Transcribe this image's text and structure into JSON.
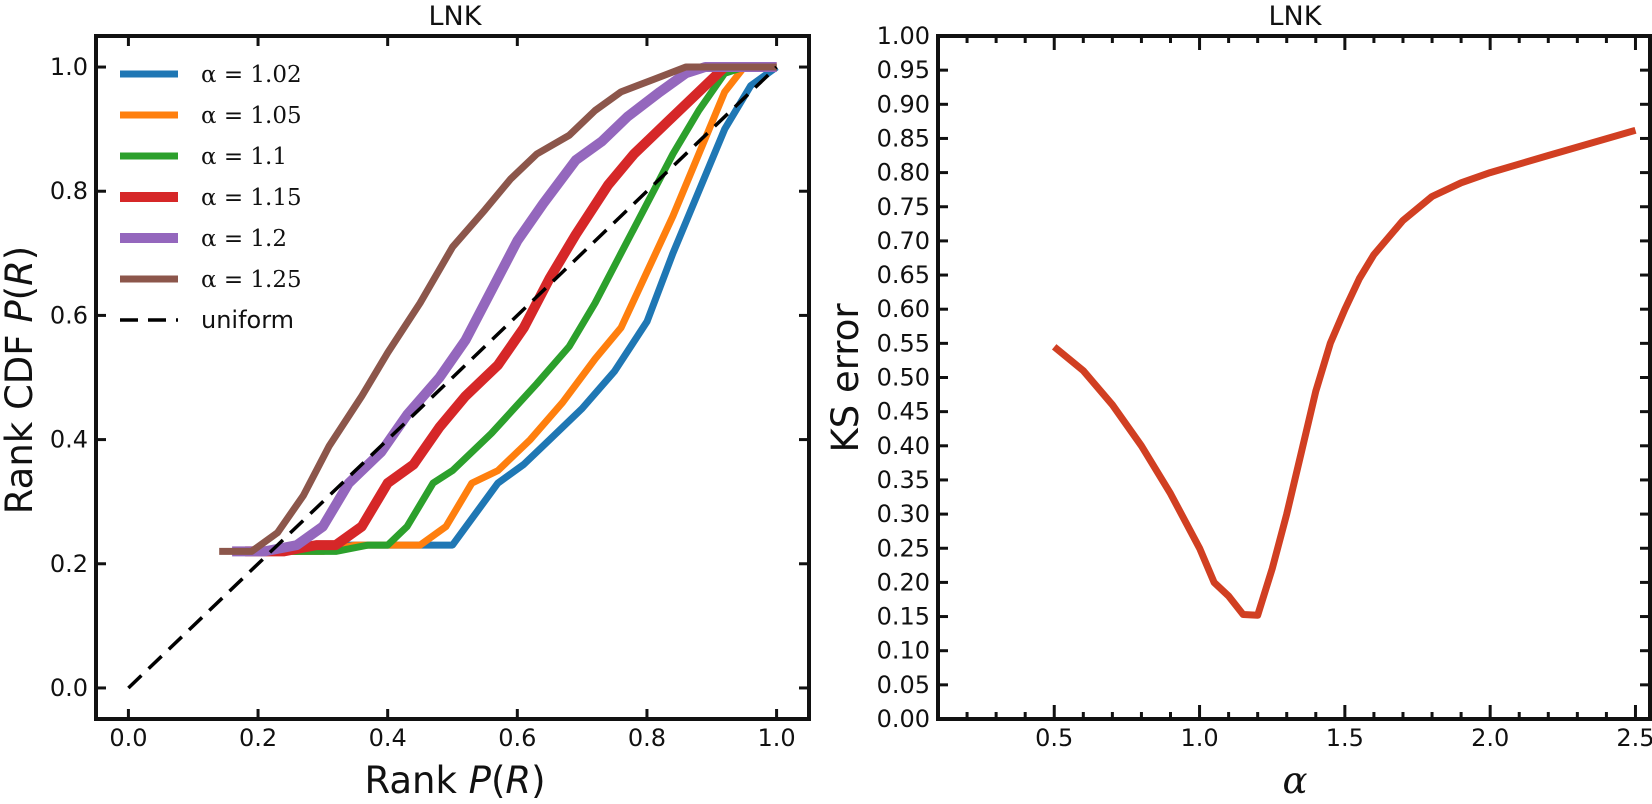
{
  "chart_data": [
    {
      "type": "line",
      "title": "LNK",
      "xlabel": "Rank P(R)",
      "ylabel": "Rank CDF P(R)",
      "xlim": [
        -0.05,
        1.05
      ],
      "ylim": [
        -0.05,
        1.05
      ],
      "xticks": [
        "0.0",
        "0.2",
        "0.4",
        "0.6",
        "0.8",
        "1.0"
      ],
      "yticks": [
        "0.0",
        "0.2",
        "0.4",
        "0.6",
        "0.8",
        "1.0"
      ],
      "legend_position": "top-left",
      "series": [
        {
          "name": "α = 1.02",
          "color": "#1f77b4",
          "x": [
            0.21,
            0.26,
            0.32,
            0.38,
            0.44,
            0.5,
            0.57,
            0.61,
            0.65,
            0.7,
            0.75,
            0.8,
            0.84,
            0.88,
            0.92,
            0.96,
            1.0
          ],
          "y": [
            0.22,
            0.22,
            0.23,
            0.23,
            0.23,
            0.23,
            0.33,
            0.36,
            0.4,
            0.45,
            0.51,
            0.59,
            0.7,
            0.8,
            0.9,
            0.97,
            1.0
          ]
        },
        {
          "name": "α = 1.05",
          "color": "#ff7f0e",
          "x": [
            0.25,
            0.3,
            0.35,
            0.4,
            0.45,
            0.49,
            0.53,
            0.57,
            0.62,
            0.67,
            0.72,
            0.76,
            0.8,
            0.84,
            0.88,
            0.92,
            0.95,
            1.0
          ],
          "y": [
            0.22,
            0.22,
            0.23,
            0.23,
            0.23,
            0.26,
            0.33,
            0.35,
            0.4,
            0.46,
            0.53,
            0.58,
            0.67,
            0.76,
            0.86,
            0.96,
            1.0,
            1.0
          ]
        },
        {
          "name": "α = 1.1",
          "color": "#2ca02c",
          "x": [
            0.22,
            0.27,
            0.32,
            0.37,
            0.4,
            0.43,
            0.47,
            0.5,
            0.56,
            0.63,
            0.68,
            0.72,
            0.76,
            0.8,
            0.84,
            0.88,
            0.92,
            0.95,
            1.0
          ],
          "y": [
            0.22,
            0.22,
            0.22,
            0.23,
            0.23,
            0.26,
            0.33,
            0.35,
            0.41,
            0.49,
            0.55,
            0.62,
            0.7,
            0.78,
            0.86,
            0.93,
            0.99,
            1.0,
            1.0
          ]
        },
        {
          "name": "α = 1.15",
          "color": "#d62728",
          "x": [
            0.18,
            0.24,
            0.29,
            0.32,
            0.36,
            0.4,
            0.44,
            0.48,
            0.52,
            0.57,
            0.61,
            0.65,
            0.69,
            0.74,
            0.78,
            0.83,
            0.88,
            0.92,
            0.96,
            1.0
          ],
          "y": [
            0.22,
            0.22,
            0.23,
            0.23,
            0.26,
            0.33,
            0.36,
            0.42,
            0.47,
            0.52,
            0.58,
            0.66,
            0.73,
            0.81,
            0.86,
            0.91,
            0.96,
            1.0,
            1.0,
            1.0
          ]
        },
        {
          "name": "α = 1.2",
          "color": "#9467bd",
          "x": [
            0.16,
            0.21,
            0.26,
            0.3,
            0.34,
            0.39,
            0.43,
            0.48,
            0.52,
            0.56,
            0.6,
            0.64,
            0.69,
            0.73,
            0.77,
            0.82,
            0.86,
            0.89,
            0.94,
            1.0
          ],
          "y": [
            0.22,
            0.22,
            0.23,
            0.26,
            0.33,
            0.38,
            0.44,
            0.5,
            0.56,
            0.64,
            0.72,
            0.78,
            0.85,
            0.88,
            0.92,
            0.96,
            0.99,
            1.0,
            1.0,
            1.0
          ]
        },
        {
          "name": "α = 1.25",
          "color": "#8c564b",
          "x": [
            0.14,
            0.19,
            0.23,
            0.27,
            0.31,
            0.36,
            0.4,
            0.45,
            0.5,
            0.55,
            0.59,
            0.63,
            0.68,
            0.72,
            0.76,
            0.81,
            0.86,
            0.9,
            0.95,
            1.0
          ],
          "y": [
            0.22,
            0.22,
            0.25,
            0.31,
            0.39,
            0.47,
            0.54,
            0.62,
            0.71,
            0.77,
            0.82,
            0.86,
            0.89,
            0.93,
            0.96,
            0.98,
            1.0,
            1.0,
            1.0,
            1.0
          ]
        },
        {
          "name": "uniform",
          "color": "#000000",
          "dash": true,
          "x": [
            0.0,
            1.0
          ],
          "y": [
            0.0,
            1.0
          ]
        }
      ]
    },
    {
      "type": "line",
      "title": "LNK",
      "xlabel": "α",
      "ylabel": "KS error",
      "xlim": [
        0.1,
        2.55
      ],
      "ylim": [
        0.0,
        1.0
      ],
      "xticks": [
        "0.5",
        "1.0",
        "1.5",
        "2.0",
        "2.5"
      ],
      "yticks": [
        "0.00",
        "0.05",
        "0.10",
        "0.15",
        "0.20",
        "0.25",
        "0.30",
        "0.35",
        "0.40",
        "0.45",
        "0.50",
        "0.55",
        "0.60",
        "0.65",
        "0.70",
        "0.75",
        "0.80",
        "0.85",
        "0.90",
        "0.95",
        "1.00"
      ],
      "series": [
        {
          "color": "#d13f22",
          "x": [
            0.5,
            0.6,
            0.7,
            0.8,
            0.9,
            1.0,
            1.05,
            1.1,
            1.15,
            1.2,
            1.25,
            1.3,
            1.35,
            1.4,
            1.45,
            1.5,
            1.55,
            1.6,
            1.7,
            1.8,
            1.9,
            2.0,
            2.2,
            2.5
          ],
          "y": [
            0.545,
            0.51,
            0.46,
            0.4,
            0.33,
            0.25,
            0.2,
            0.18,
            0.153,
            0.152,
            0.22,
            0.3,
            0.39,
            0.48,
            0.55,
            0.6,
            0.645,
            0.68,
            0.73,
            0.765,
            0.785,
            0.8,
            0.825,
            0.862
          ]
        }
      ]
    }
  ]
}
